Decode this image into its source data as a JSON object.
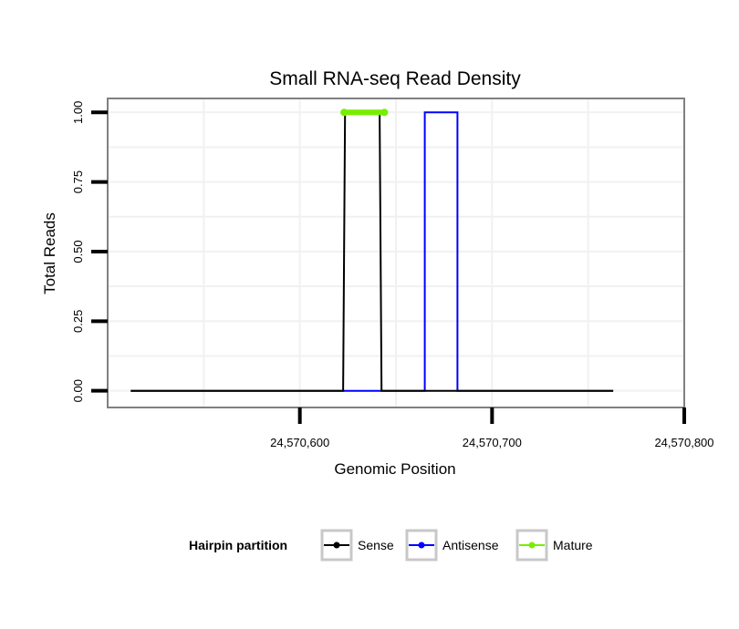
{
  "chart_data": {
    "type": "line",
    "title": "Small RNA-seq Read Density",
    "xlabel": "Genomic Position",
    "ylabel": "Total Reads",
    "xlim": [
      24570500,
      24570800
    ],
    "ylim": [
      -0.06,
      1.05
    ],
    "x_ticks": [
      24570600,
      24570700,
      24570800
    ],
    "x_tick_labels": [
      "24,570,600",
      "24,570,700",
      "24,570,800"
    ],
    "y_ticks": [
      0,
      0.25,
      0.5,
      0.75,
      1.0
    ],
    "y_tick_labels": [
      "0.00",
      "0.25",
      "0.50",
      "0.75",
      "1.00"
    ],
    "grid": true,
    "legend": {
      "title": "Hairpin partition",
      "position": "bottom",
      "entries": [
        "Sense",
        "Antisense",
        "Mature"
      ]
    },
    "series": [
      {
        "name": "Antisense",
        "color": "#0000ff",
        "x": [
          24570512,
          24570665,
          24570665,
          24570682,
          24570682,
          24570763
        ],
        "y": [
          0,
          0,
          1,
          1,
          0,
          0
        ]
      },
      {
        "name": "Sense",
        "color": "#000000",
        "x": [
          24570512,
          24570622.5,
          24570623.5,
          24570641.5,
          24570642.5,
          24570763
        ],
        "y": [
          0,
          0,
          1,
          1,
          0,
          0
        ]
      },
      {
        "name": "Mature",
        "color": "#77ee00",
        "x": [
          24570623,
          24570644
        ],
        "y": [
          1,
          1
        ]
      }
    ]
  }
}
